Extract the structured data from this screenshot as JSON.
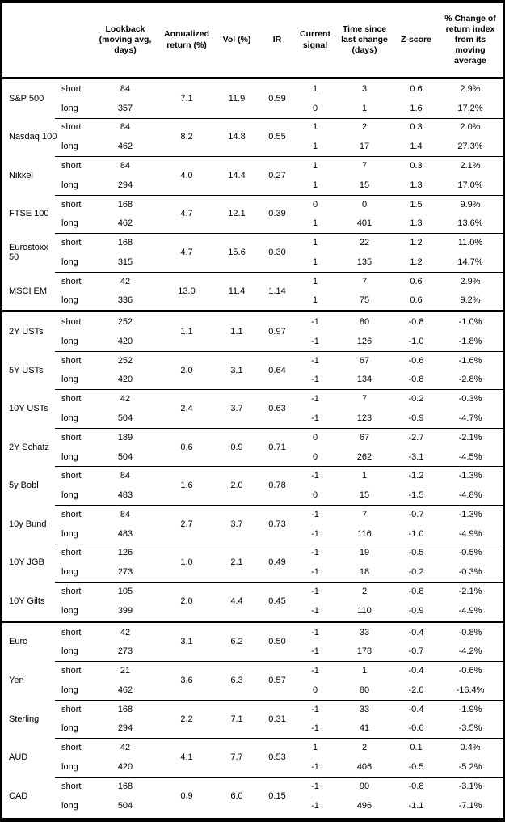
{
  "colors": {
    "text": "#000000",
    "border": "#000000",
    "background": "#ffffff"
  },
  "chart_data": {
    "type": "table",
    "columns": [
      "",
      "",
      "Lookback (moving avg, days)",
      "Annualized return (%)",
      "Vol (%)",
      "IR",
      "Current signal",
      "Time since last change (days)",
      "Z-score",
      "% Change of return index from its moving average"
    ],
    "sections": [
      {
        "name": "section-1",
        "groups": [
          {
            "asset": "S&P 500",
            "annualized_return": "7.1",
            "vol": "11.9",
            "ir": "0.59",
            "rows": [
              {
                "side": "short",
                "lookback": "84",
                "signal": "1",
                "time_since_change": "3",
                "z_score": "0.6",
                "pct_change": "2.9%"
              },
              {
                "side": "long",
                "lookback": "357",
                "signal": "0",
                "time_since_change": "1",
                "z_score": "1.6",
                "pct_change": "17.2%"
              }
            ]
          },
          {
            "asset": "Nasdaq 100",
            "annualized_return": "8.2",
            "vol": "14.8",
            "ir": "0.55",
            "rows": [
              {
                "side": "short",
                "lookback": "84",
                "signal": "1",
                "time_since_change": "2",
                "z_score": "0.3",
                "pct_change": "2.0%"
              },
              {
                "side": "long",
                "lookback": "462",
                "signal": "1",
                "time_since_change": "17",
                "z_score": "1.4",
                "pct_change": "27.3%"
              }
            ]
          },
          {
            "asset": "Nikkei",
            "annualized_return": "4.0",
            "vol": "14.4",
            "ir": "0.27",
            "rows": [
              {
                "side": "short",
                "lookback": "84",
                "signal": "1",
                "time_since_change": "7",
                "z_score": "0.3",
                "pct_change": "2.1%"
              },
              {
                "side": "long",
                "lookback": "294",
                "signal": "1",
                "time_since_change": "15",
                "z_score": "1.3",
                "pct_change": "17.0%"
              }
            ]
          },
          {
            "asset": "FTSE 100",
            "annualized_return": "4.7",
            "vol": "12.1",
            "ir": "0.39",
            "rows": [
              {
                "side": "short",
                "lookback": "168",
                "signal": "0",
                "time_since_change": "0",
                "z_score": "1.5",
                "pct_change": "9.9%"
              },
              {
                "side": "long",
                "lookback": "462",
                "signal": "1",
                "time_since_change": "401",
                "z_score": "1.3",
                "pct_change": "13.6%"
              }
            ]
          },
          {
            "asset": "Eurostoxx 50",
            "annualized_return": "4.7",
            "vol": "15.6",
            "ir": "0.30",
            "rows": [
              {
                "side": "short",
                "lookback": "168",
                "signal": "1",
                "time_since_change": "22",
                "z_score": "1.2",
                "pct_change": "11.0%"
              },
              {
                "side": "long",
                "lookback": "315",
                "signal": "1",
                "time_since_change": "135",
                "z_score": "1.2",
                "pct_change": "14.7%"
              }
            ]
          },
          {
            "asset": "MSCI EM",
            "annualized_return": "13.0",
            "vol": "11.4",
            "ir": "1.14",
            "rows": [
              {
                "side": "short",
                "lookback": "42",
                "signal": "1",
                "time_since_change": "7",
                "z_score": "0.6",
                "pct_change": "2.9%"
              },
              {
                "side": "long",
                "lookback": "336",
                "signal": "1",
                "time_since_change": "75",
                "z_score": "0.6",
                "pct_change": "9.2%"
              }
            ]
          }
        ]
      },
      {
        "name": "section-2",
        "groups": [
          {
            "asset": "2Y USTs",
            "annualized_return": "1.1",
            "vol": "1.1",
            "ir": "0.97",
            "rows": [
              {
                "side": "short",
                "lookback": "252",
                "signal": "-1",
                "time_since_change": "80",
                "z_score": "-0.8",
                "pct_change": "-1.0%"
              },
              {
                "side": "long",
                "lookback": "420",
                "signal": "-1",
                "time_since_change": "126",
                "z_score": "-1.0",
                "pct_change": "-1.8%"
              }
            ]
          },
          {
            "asset": "5Y USTs",
            "annualized_return": "2.0",
            "vol": "3.1",
            "ir": "0.64",
            "rows": [
              {
                "side": "short",
                "lookback": "252",
                "signal": "-1",
                "time_since_change": "67",
                "z_score": "-0.6",
                "pct_change": "-1.6%"
              },
              {
                "side": "long",
                "lookback": "420",
                "signal": "-1",
                "time_since_change": "134",
                "z_score": "-0.8",
                "pct_change": "-2.8%"
              }
            ]
          },
          {
            "asset": "10Y USTs",
            "annualized_return": "2.4",
            "vol": "3.7",
            "ir": "0.63",
            "rows": [
              {
                "side": "short",
                "lookback": "42",
                "signal": "-1",
                "time_since_change": "7",
                "z_score": "-0.2",
                "pct_change": "-0.3%"
              },
              {
                "side": "long",
                "lookback": "504",
                "signal": "-1",
                "time_since_change": "123",
                "z_score": "-0.9",
                "pct_change": "-4.7%"
              }
            ]
          },
          {
            "asset": "2Y Schatz",
            "annualized_return": "0.6",
            "vol": "0.9",
            "ir": "0.71",
            "rows": [
              {
                "side": "short",
                "lookback": "189",
                "signal": "0",
                "time_since_change": "67",
                "z_score": "-2.7",
                "pct_change": "-2.1%"
              },
              {
                "side": "long",
                "lookback": "504",
                "signal": "0",
                "time_since_change": "262",
                "z_score": "-3.1",
                "pct_change": "-4.5%"
              }
            ]
          },
          {
            "asset": "5y Bobl",
            "annualized_return": "1.6",
            "vol": "2.0",
            "ir": "0.78",
            "rows": [
              {
                "side": "short",
                "lookback": "84",
                "signal": "-1",
                "time_since_change": "1",
                "z_score": "-1.2",
                "pct_change": "-1.3%"
              },
              {
                "side": "long",
                "lookback": "483",
                "signal": "0",
                "time_since_change": "15",
                "z_score": "-1.5",
                "pct_change": "-4.8%"
              }
            ]
          },
          {
            "asset": "10y Bund",
            "annualized_return": "2.7",
            "vol": "3.7",
            "ir": "0.73",
            "rows": [
              {
                "side": "short",
                "lookback": "84",
                "signal": "-1",
                "time_since_change": "7",
                "z_score": "-0.7",
                "pct_change": "-1.3%"
              },
              {
                "side": "long",
                "lookback": "483",
                "signal": "-1",
                "time_since_change": "116",
                "z_score": "-1.0",
                "pct_change": "-4.9%"
              }
            ]
          },
          {
            "asset": "10Y JGB",
            "annualized_return": "1.0",
            "vol": "2.1",
            "ir": "0.49",
            "rows": [
              {
                "side": "short",
                "lookback": "126",
                "signal": "-1",
                "time_since_change": "19",
                "z_score": "-0.5",
                "pct_change": "-0.5%"
              },
              {
                "side": "long",
                "lookback": "273",
                "signal": "-1",
                "time_since_change": "18",
                "z_score": "-0.2",
                "pct_change": "-0.3%"
              }
            ]
          },
          {
            "asset": "10Y Gilts",
            "annualized_return": "2.0",
            "vol": "4.4",
            "ir": "0.45",
            "rows": [
              {
                "side": "short",
                "lookback": "105",
                "signal": "-1",
                "time_since_change": "2",
                "z_score": "-0.8",
                "pct_change": "-2.1%"
              },
              {
                "side": "long",
                "lookback": "399",
                "signal": "-1",
                "time_since_change": "110",
                "z_score": "-0.9",
                "pct_change": "-4.9%"
              }
            ]
          }
        ]
      },
      {
        "name": "section-3",
        "groups": [
          {
            "asset": "Euro",
            "annualized_return": "3.1",
            "vol": "6.2",
            "ir": "0.50",
            "rows": [
              {
                "side": "short",
                "lookback": "42",
                "signal": "-1",
                "time_since_change": "33",
                "z_score": "-0.4",
                "pct_change": "-0.8%"
              },
              {
                "side": "long",
                "lookback": "273",
                "signal": "-1",
                "time_since_change": "178",
                "z_score": "-0.7",
                "pct_change": "-4.2%"
              }
            ]
          },
          {
            "asset": "Yen",
            "annualized_return": "3.6",
            "vol": "6.3",
            "ir": "0.57",
            "rows": [
              {
                "side": "short",
                "lookback": "21",
                "signal": "-1",
                "time_since_change": "1",
                "z_score": "-0.4",
                "pct_change": "-0.6%"
              },
              {
                "side": "long",
                "lookback": "462",
                "signal": "0",
                "time_since_change": "80",
                "z_score": "-2.0",
                "pct_change": "-16.4%"
              }
            ]
          },
          {
            "asset": "Sterling",
            "annualized_return": "2.2",
            "vol": "7.1",
            "ir": "0.31",
            "rows": [
              {
                "side": "short",
                "lookback": "168",
                "signal": "-1",
                "time_since_change": "33",
                "z_score": "-0.4",
                "pct_change": "-1.9%"
              },
              {
                "side": "long",
                "lookback": "294",
                "signal": "-1",
                "time_since_change": "41",
                "z_score": "-0.6",
                "pct_change": "-3.5%"
              }
            ]
          },
          {
            "asset": "AUD",
            "annualized_return": "4.1",
            "vol": "7.7",
            "ir": "0.53",
            "rows": [
              {
                "side": "short",
                "lookback": "42",
                "signal": "1",
                "time_since_change": "2",
                "z_score": "0.1",
                "pct_change": "0.4%"
              },
              {
                "side": "long",
                "lookback": "420",
                "signal": "-1",
                "time_since_change": "406",
                "z_score": "-0.5",
                "pct_change": "-5.2%"
              }
            ]
          },
          {
            "asset": "CAD",
            "annualized_return": "0.9",
            "vol": "6.0",
            "ir": "0.15",
            "rows": [
              {
                "side": "short",
                "lookback": "168",
                "signal": "-1",
                "time_since_change": "90",
                "z_score": "-0.8",
                "pct_change": "-3.1%"
              },
              {
                "side": "long",
                "lookback": "504",
                "signal": "-1",
                "time_since_change": "496",
                "z_score": "-1.1",
                "pct_change": "-7.1%"
              }
            ]
          }
        ]
      }
    ]
  }
}
